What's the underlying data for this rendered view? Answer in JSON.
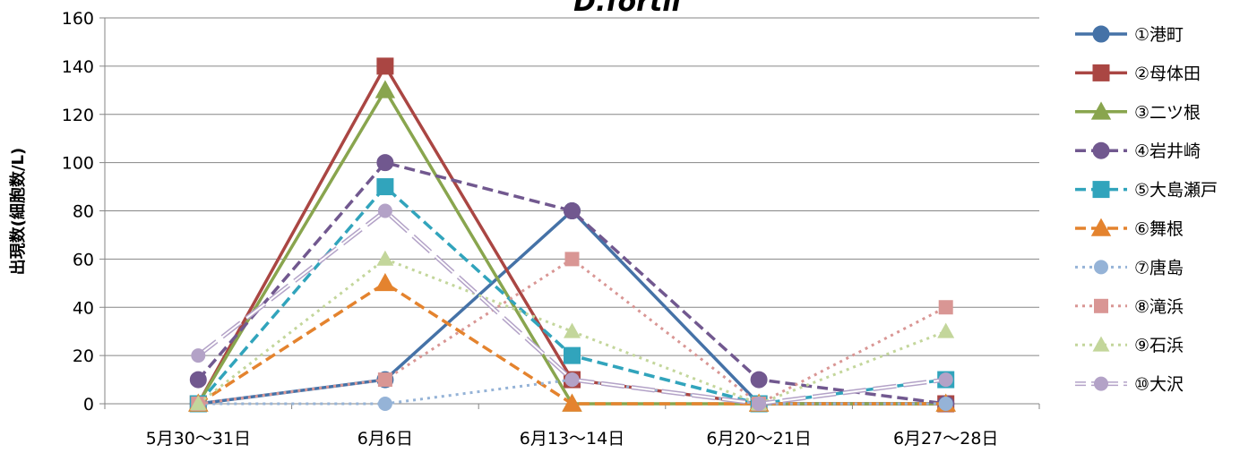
{
  "chart_data": {
    "type": "line",
    "title": "D.fortii",
    "xlabel": "",
    "ylabel": "出現数(細胞数/L)",
    "categories": [
      "5月30～31日",
      "6月6日",
      "6月13～14日",
      "6月20～21日",
      "6月27～28日"
    ],
    "ylim": [
      0,
      160
    ],
    "yticks": [
      0,
      20,
      40,
      60,
      80,
      100,
      120,
      140,
      160
    ],
    "grid": true,
    "legend_position": "right",
    "series": [
      {
        "name": "①港町",
        "values": [
          0,
          10,
          80,
          0,
          0
        ],
        "color": "#4572a7",
        "dash": "solid",
        "marker": "circle",
        "size": "large"
      },
      {
        "name": "②母体田",
        "values": [
          0,
          140,
          10,
          0,
          0
        ],
        "color": "#aa4643",
        "dash": "solid",
        "marker": "square",
        "size": "large"
      },
      {
        "name": "③二ツ根",
        "values": [
          0,
          130,
          0,
          0,
          0
        ],
        "color": "#89a54e",
        "dash": "solid",
        "marker": "triangle",
        "size": "large"
      },
      {
        "name": "④岩井崎",
        "values": [
          10,
          100,
          80,
          10,
          0
        ],
        "color": "#71588f",
        "dash": "dashed",
        "marker": "circle",
        "size": "large"
      },
      {
        "name": "⑤大島瀬戸",
        "values": [
          0,
          90,
          20,
          0,
          10
        ],
        "color": "#31a4bc",
        "dash": "dashed",
        "marker": "square",
        "size": "large"
      },
      {
        "name": "⑥舞根",
        "values": [
          0,
          50,
          0,
          0,
          0
        ],
        "color": "#e4832e",
        "dash": "dashed",
        "marker": "triangle",
        "size": "large"
      },
      {
        "name": "⑦唐島",
        "values": [
          0,
          0,
          10,
          0,
          0
        ],
        "color": "#95b3d7",
        "dash": "dotted",
        "marker": "circle",
        "size": "small"
      },
      {
        "name": "⑧滝浜",
        "values": [
          0,
          10,
          60,
          0,
          40
        ],
        "color": "#d99694",
        "dash": "dotted",
        "marker": "square",
        "size": "small"
      },
      {
        "name": "⑨石浜",
        "values": [
          0,
          60,
          30,
          0,
          30
        ],
        "color": "#c3d69b",
        "dash": "dotted",
        "marker": "triangle",
        "size": "small"
      },
      {
        "name": "⑩大沢",
        "values": [
          20,
          80,
          10,
          0,
          10
        ],
        "color": "#b3a2c7",
        "dash": "longdash",
        "marker": "circle",
        "size": "small"
      }
    ]
  }
}
